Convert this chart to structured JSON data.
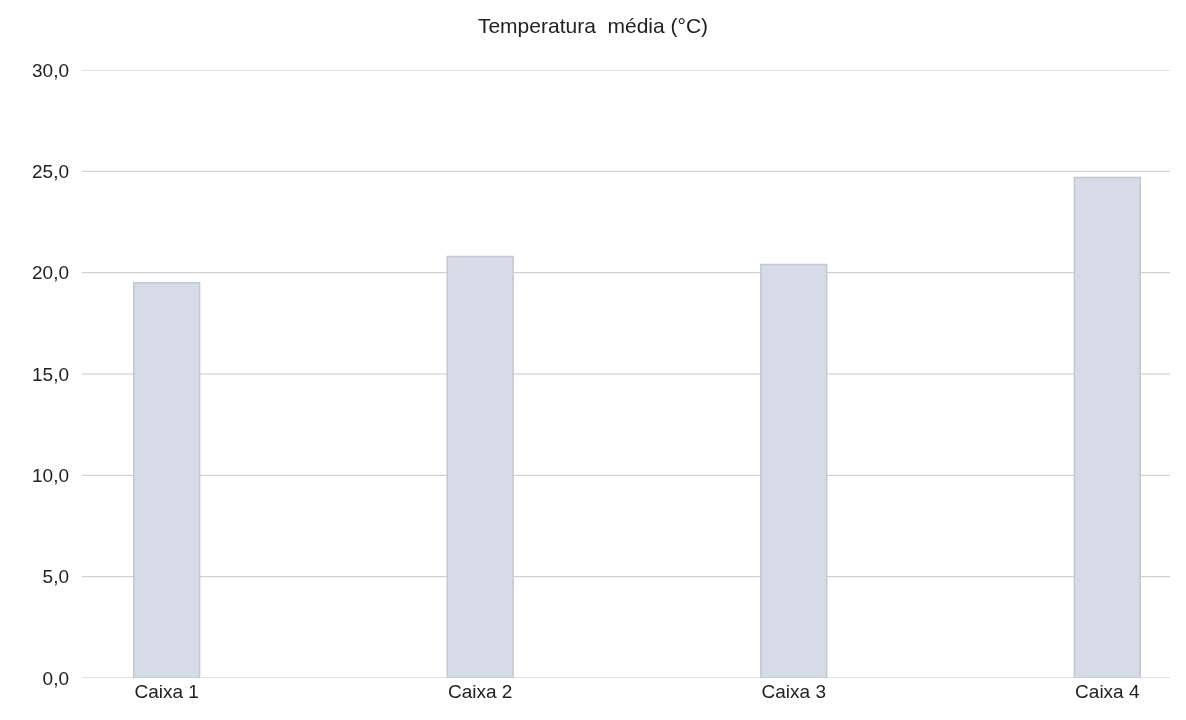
{
  "chart_data": {
    "type": "bar",
    "title": "Temperatura  média (°C)",
    "categories": [
      "Caixa 1",
      "Caixa 2",
      "Caixa 3",
      "Caixa 4"
    ],
    "values": [
      19.5,
      20.8,
      20.4,
      24.7
    ],
    "color": "#d6dce5",
    "ylim": [
      0,
      30
    ],
    "yticks": [
      {
        "value": 0,
        "label": "0,0"
      },
      {
        "value": 5,
        "label": "5,0"
      },
      {
        "value": 10,
        "label": "10,0"
      },
      {
        "value": 15,
        "label": "15,0"
      },
      {
        "value": 20,
        "label": "20,0"
      },
      {
        "value": 25,
        "label": "25,0"
      },
      {
        "value": 30,
        "label": "30,0"
      }
    ],
    "grid": "y"
  }
}
